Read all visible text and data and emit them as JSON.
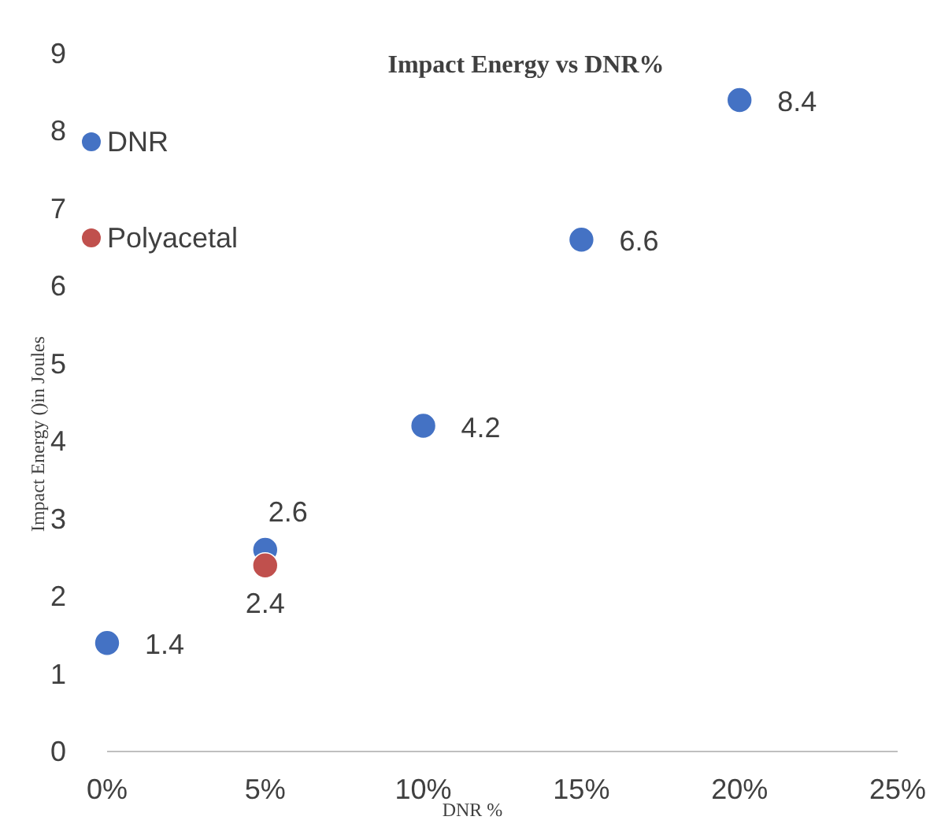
{
  "chart_data": {
    "type": "scatter",
    "title": "Impact Energy vs DNR%",
    "xlabel": "DNR %",
    "ylabel": "Impact Energy ()in Joules",
    "xlim": [
      0,
      25
    ],
    "xticks": [
      {
        "value": 0,
        "label": "0%"
      },
      {
        "value": 5,
        "label": "5%"
      },
      {
        "value": 10,
        "label": "10%"
      },
      {
        "value": 15,
        "label": "15%"
      },
      {
        "value": 20,
        "label": "20%"
      },
      {
        "value": 25,
        "label": "25%"
      }
    ],
    "ylim": [
      0,
      9
    ],
    "yticks": [
      0,
      1,
      2,
      3,
      4,
      5,
      6,
      7,
      8,
      9
    ],
    "series": [
      {
        "name": "DNR",
        "color": "#4472c4",
        "x": [
          0,
          5,
          10,
          15,
          20
        ],
        "values": [
          1.4,
          2.6,
          4.2,
          6.6,
          8.4
        ]
      },
      {
        "name": "Polyacetal",
        "color": "#c0504d",
        "x": [
          5
        ],
        "values": [
          2.4
        ]
      }
    ],
    "data_labels": true,
    "legend": "top left",
    "marker": "circle",
    "grid": false
  }
}
